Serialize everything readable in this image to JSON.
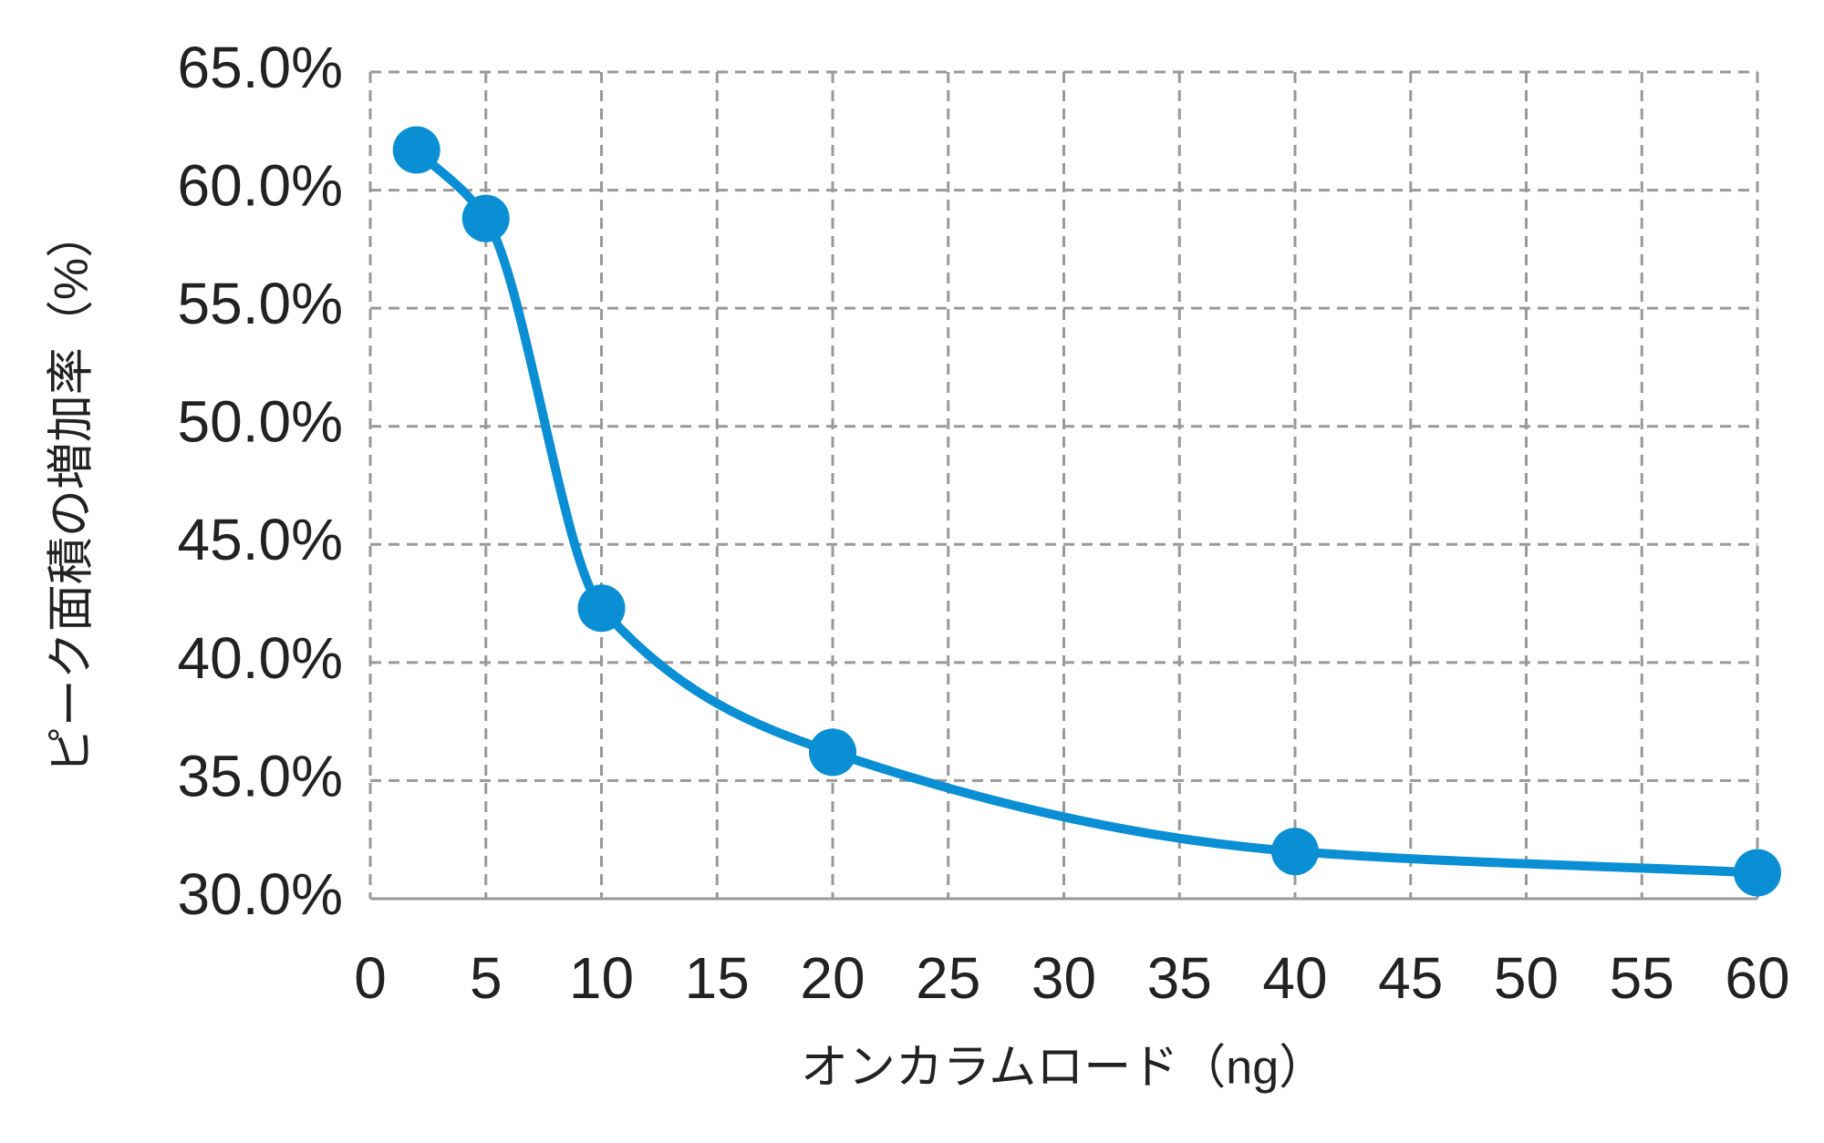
{
  "chart_data": {
    "type": "line",
    "x_label": "オンカラムロード（ng）",
    "y_label": "ピーク面積の増加率（%）",
    "x": [
      2,
      5,
      10,
      20,
      40,
      60
    ],
    "values": [
      61.7,
      58.8,
      42.3,
      36.2,
      32.0,
      31.1
    ],
    "color": "#0b8fd4",
    "smooth": true,
    "markers": true,
    "grid": true,
    "xlim": [
      0,
      60
    ],
    "xticks": [
      0,
      5,
      10,
      15,
      20,
      25,
      30,
      35,
      40,
      45,
      50,
      55,
      60
    ],
    "ylim": [
      30,
      65
    ],
    "yticks": [
      {
        "value": 30,
        "label": "30.0%"
      },
      {
        "value": 35,
        "label": "35.0%"
      },
      {
        "value": 40,
        "label": "40.0%"
      },
      {
        "value": 45,
        "label": "45.0%"
      },
      {
        "value": 50,
        "label": "50.0%"
      },
      {
        "value": 55,
        "label": "55.0%"
      },
      {
        "value": 60,
        "label": "60.0%"
      },
      {
        "value": 65,
        "label": "65.0%"
      }
    ]
  }
}
